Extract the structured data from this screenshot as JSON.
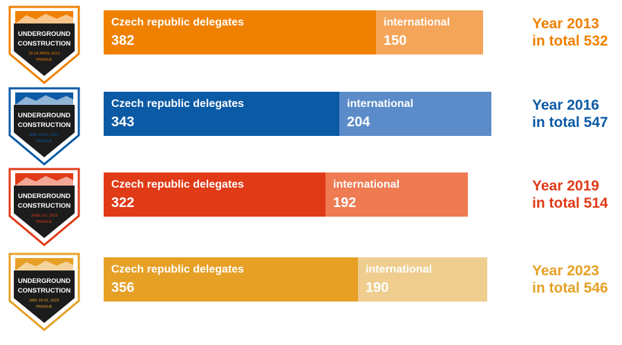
{
  "chart_data": {
    "type": "bar",
    "orientation": "horizontal-stacked",
    "categories": [
      "2013",
      "2016",
      "2019",
      "2023"
    ],
    "series": [
      {
        "name": "Czech republic delegates",
        "values": [
          382,
          343,
          322,
          356
        ]
      },
      {
        "name": "international",
        "values": [
          150,
          204,
          192,
          190
        ]
      }
    ],
    "rows": [
      {
        "year_line": "Year 2013",
        "total_line": "in total 532",
        "czech_label": "Czech republic delegates",
        "czech_value": "382",
        "intl_label": "international",
        "intl_value": "150",
        "color_main": "#f08000",
        "color_light": "#f5a55a",
        "logo": {
          "title1": "UNDERGROUND",
          "title2": "CONSTRUCTION",
          "date": "22-24 APRIL 2013",
          "city": "PRAGUE"
        }
      },
      {
        "year_line": "Year 2016",
        "total_line": "in total 547",
        "czech_label": "Czech republic delegates",
        "czech_value": "343",
        "intl_label": "international",
        "intl_value": "204",
        "color_main": "#0b5aa5",
        "color_light": "#5b8cc9",
        "logo": {
          "title1": "UNDERGROUND",
          "title2": "CONSTRUCTION",
          "date": "MAY 23-25, 2016",
          "city": "PRAGUE"
        }
      },
      {
        "year_line": "Year 2019",
        "total_line": "in total 514",
        "czech_label": "Czech republic delegates",
        "czech_value": "322",
        "intl_label": "international",
        "intl_value": "192",
        "color_main": "#e03a17",
        "color_light": "#ee7b52",
        "logo": {
          "title1": "UNDERGROUND",
          "title2": "CONSTRUCTION",
          "date": "JUNE 3-5, 2019",
          "city": "PRAGUE"
        }
      },
      {
        "year_line": "Year 2023",
        "total_line": "in total 546",
        "czech_label": "Czech republic delegates",
        "czech_value": "356",
        "intl_label": "international",
        "intl_value": "190",
        "color_main": "#e6a025",
        "color_light": "#eecd8f",
        "logo": {
          "title1": "UNDERGROUND",
          "title2": "CONSTRUCTION",
          "date": "MAY 29-31, 2023",
          "city": "PRAGUE"
        }
      }
    ]
  }
}
